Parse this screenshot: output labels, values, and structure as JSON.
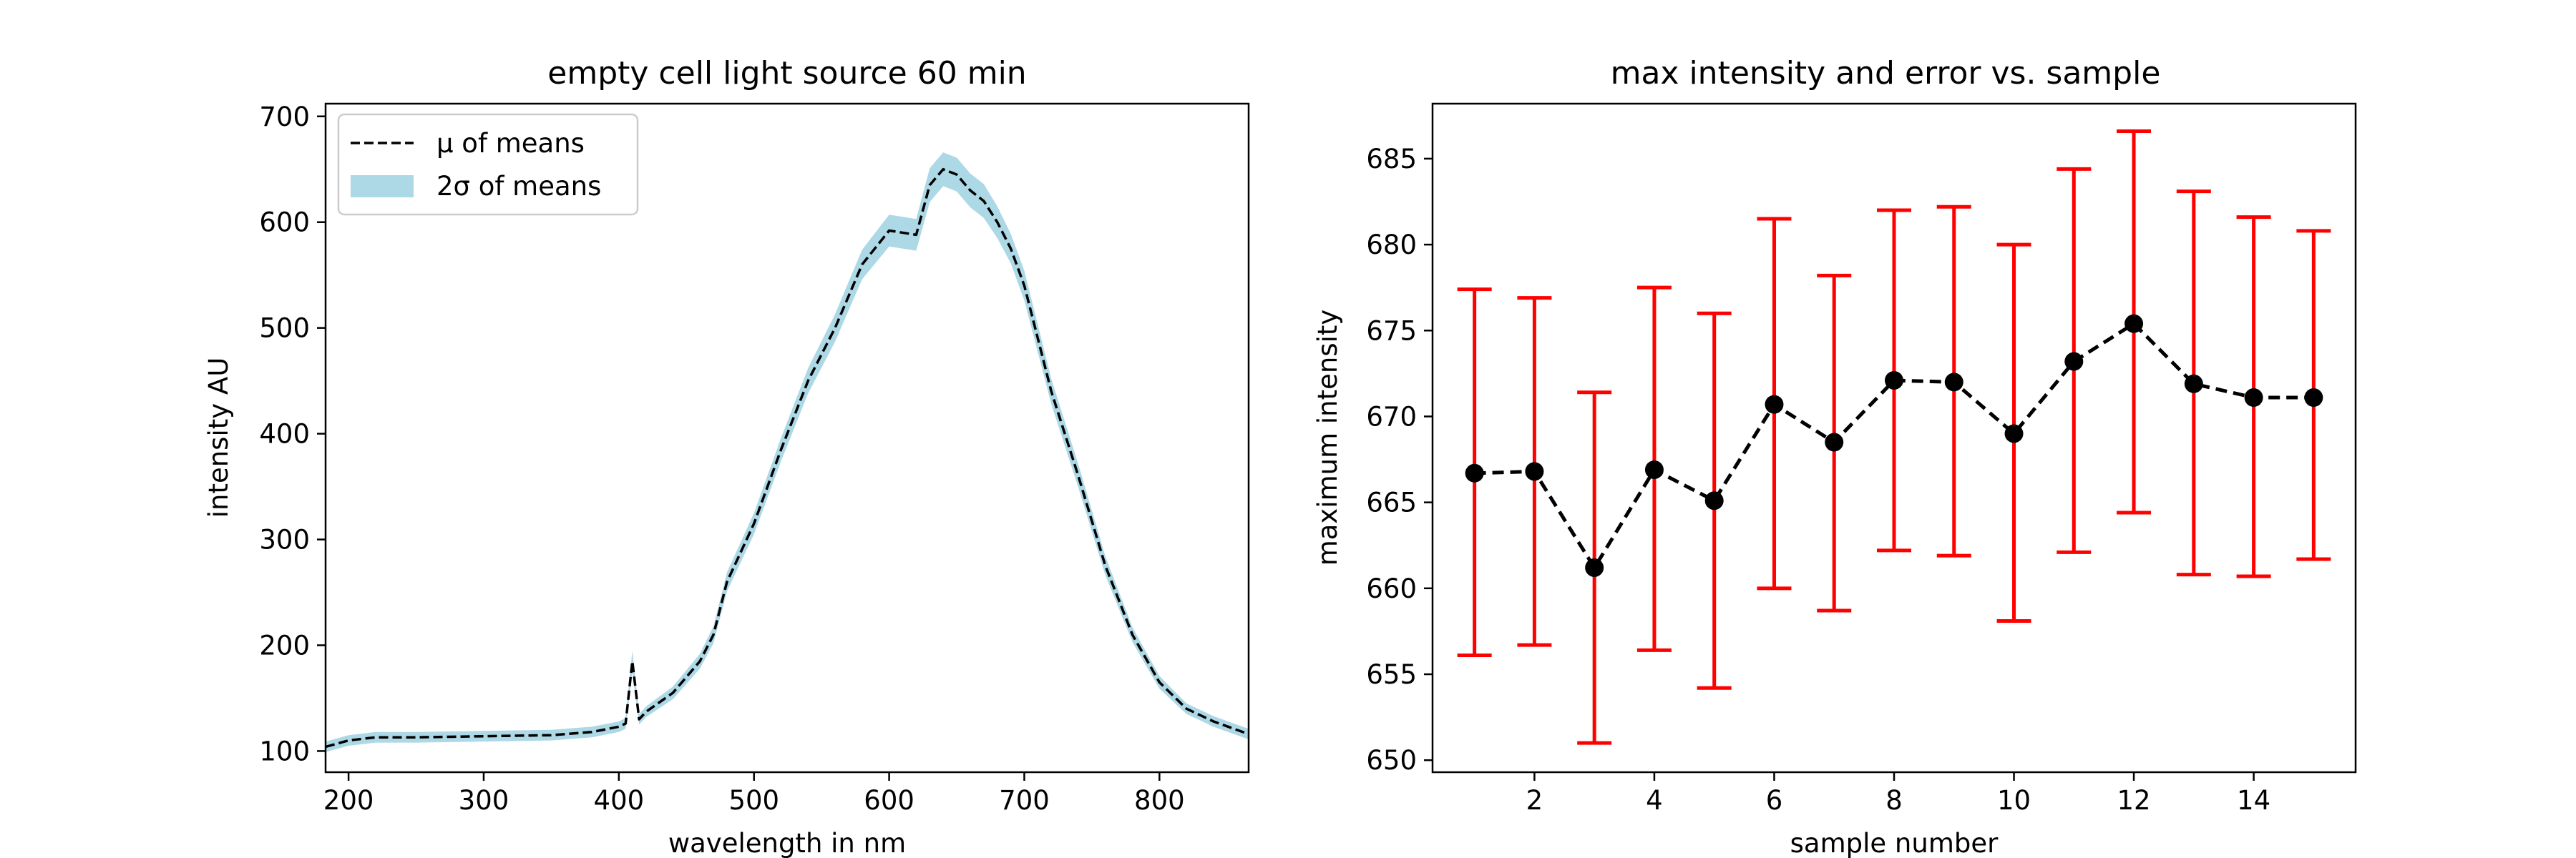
{
  "chart_data": [
    {
      "type": "line",
      "title": "empty cell light source 60 min",
      "xlabel": "wavelength in nm",
      "ylabel": "intensity AU",
      "xlim": [
        183,
        866
      ],
      "ylim": [
        80,
        712
      ],
      "xticks": [
        200,
        300,
        400,
        500,
        600,
        700,
        800
      ],
      "yticks": [
        100,
        200,
        300,
        400,
        500,
        600,
        700
      ],
      "grid": false,
      "legend_position": "upper-left",
      "legend": [
        "μ of means",
        "2σ of means"
      ],
      "series": [
        {
          "name": "μ of means",
          "style": "dashed",
          "color": "#000000",
          "x": [
            183,
            200,
            220,
            250,
            300,
            350,
            380,
            400,
            405,
            410,
            415,
            420,
            440,
            460,
            470,
            480,
            500,
            520,
            540,
            560,
            580,
            600,
            620,
            630,
            640,
            650,
            660,
            670,
            680,
            690,
            700,
            710,
            720,
            740,
            760,
            780,
            800,
            820,
            840,
            866
          ],
          "y": [
            104,
            110,
            113,
            113,
            114,
            115,
            118,
            123,
            126,
            185,
            130,
            137,
            155,
            185,
            210,
            260,
            315,
            385,
            450,
            500,
            560,
            592,
            588,
            635,
            650,
            645,
            630,
            620,
            600,
            575,
            540,
            490,
            440,
            360,
            275,
            210,
            165,
            140,
            128,
            116
          ]
        },
        {
          "name": "2σ of means",
          "style": "band",
          "color": "#add8e6",
          "x": [
            183,
            200,
            220,
            250,
            300,
            350,
            380,
            400,
            405,
            410,
            415,
            420,
            440,
            460,
            470,
            480,
            500,
            520,
            540,
            560,
            580,
            600,
            620,
            630,
            640,
            650,
            660,
            670,
            680,
            690,
            700,
            710,
            720,
            740,
            760,
            780,
            800,
            820,
            840,
            866
          ],
          "y_lower": [
            99,
            105,
            108,
            108,
            109,
            110,
            113,
            118,
            121,
            175,
            125,
            132,
            149,
            178,
            202,
            251,
            305,
            374,
            438,
            487,
            546,
            577,
            573,
            619,
            634,
            629,
            614,
            604,
            585,
            561,
            526,
            477,
            428,
            349,
            266,
            203,
            159,
            135,
            123,
            111
          ],
          "y_upper": [
            109,
            115,
            118,
            118,
            119,
            120,
            123,
            128,
            131,
            195,
            135,
            142,
            161,
            192,
            218,
            269,
            325,
            396,
            462,
            513,
            574,
            607,
            603,
            651,
            666,
            661,
            646,
            636,
            615,
            589,
            554,
            503,
            452,
            371,
            284,
            217,
            171,
            145,
            133,
            121
          ]
        }
      ]
    },
    {
      "type": "line",
      "title": "max intensity and error vs. sample",
      "xlabel": "sample number",
      "ylabel": "maximum intensity",
      "xlim": [
        0.3,
        15.7
      ],
      "ylim": [
        649.3,
        688.2
      ],
      "xticks": [
        2,
        4,
        6,
        8,
        10,
        12,
        14
      ],
      "yticks": [
        650,
        655,
        660,
        665,
        670,
        675,
        680,
        685
      ],
      "grid": false,
      "series": [
        {
          "style": "dashed-markers",
          "color": "#000000",
          "error_color": "#ff0000",
          "x": [
            1,
            2,
            3,
            4,
            5,
            6,
            7,
            8,
            9,
            10,
            11,
            12,
            13,
            14,
            15
          ],
          "y": [
            666.7,
            666.8,
            661.2,
            666.9,
            665.1,
            670.7,
            668.5,
            672.1,
            672.0,
            669.0,
            673.2,
            675.4,
            671.9,
            671.1,
            671.1
          ],
          "err_low": [
            656.1,
            656.7,
            651.0,
            656.4,
            654.2,
            660.0,
            658.7,
            662.2,
            661.9,
            658.1,
            662.1,
            664.4,
            660.8,
            660.7,
            661.7
          ],
          "err_high": [
            677.4,
            676.9,
            671.4,
            677.5,
            676.0,
            681.5,
            678.2,
            682.0,
            682.2,
            680.0,
            684.4,
            686.6,
            683.1,
            681.6,
            680.8
          ]
        }
      ]
    }
  ]
}
